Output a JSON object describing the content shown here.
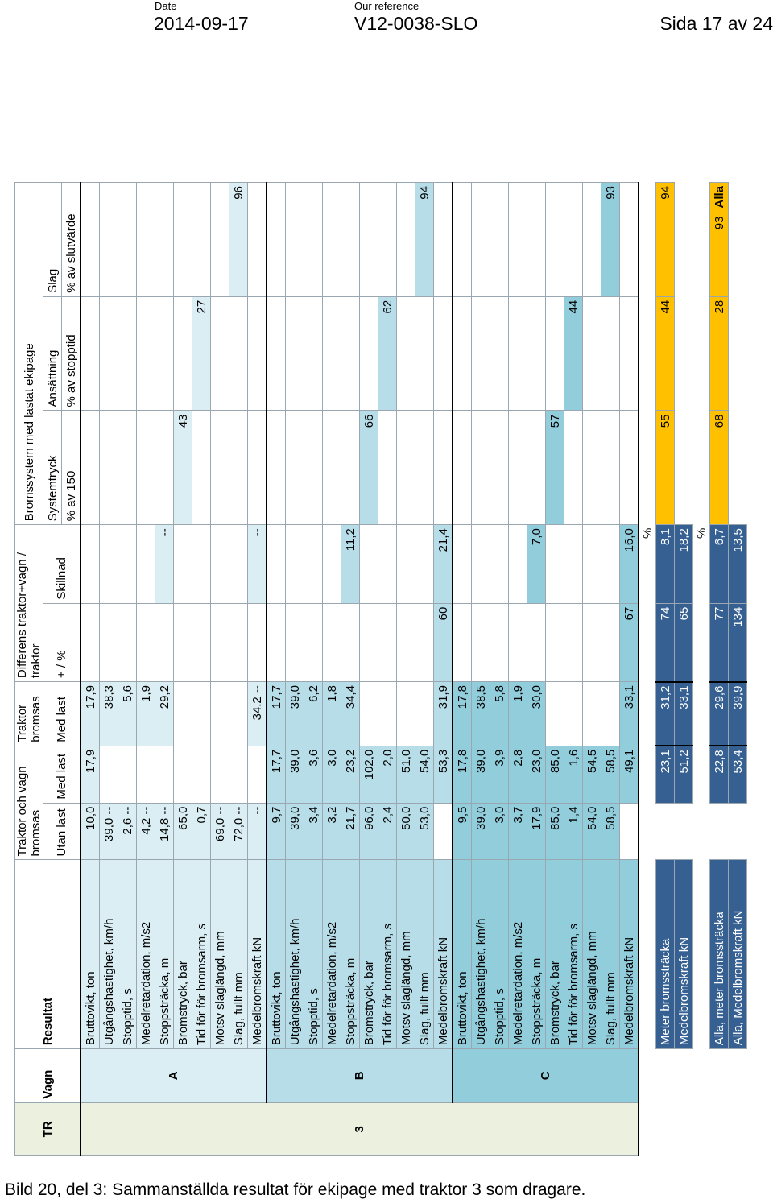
{
  "header": {
    "date_label": "Date",
    "date": "2014-09-17",
    "ref_label": "Our reference",
    "ref": "V12-0038-SLO",
    "page": "Sida 17 av 24"
  },
  "caption": "Bild 20, del 3: Sammanställda resultat för ekipage med traktor 3 som dragare.",
  "table": {
    "h_tr": "TR",
    "h_vagn": "Vagn",
    "h_resultat": "Resultat",
    "h_group1": "Traktor och vagn bromsas",
    "h_group2": "Traktor bromsas",
    "h_group3": "Differens traktor+vagn / traktor",
    "h_group4": "Bromssystem med lastat ekipage",
    "h_utan": "Utan last",
    "h_med1": "Med last",
    "h_med2": "Med last",
    "h_pct": "+ / %",
    "h_skillnad": "Skillnad",
    "h_system": "Systemtryck",
    "h_ans": "Ansättning",
    "h_slag": "Slag",
    "h_sys_sub": "% av 150",
    "h_ans_sub": "% av stopptid",
    "h_slag_sub": "% av slutvärde",
    "tr": "3",
    "groups": [
      {
        "label": "A",
        "rows": [
          {
            "name": "Bruttovikt, ton",
            "u": "10,0",
            "m": "17,9",
            "t": "17,9",
            "p": "",
            "s": "",
            "sys": "",
            "ans": "",
            "sl": ""
          },
          {
            "name": "Utgångshastighet, km/h",
            "u": "39,0 --",
            "m": "",
            "t": "38,3",
            "p": "",
            "s": "",
            "sys": "",
            "ans": "",
            "sl": ""
          },
          {
            "name": "Stopptid, s",
            "u": "2,6 --",
            "m": "",
            "t": "5,6",
            "p": "",
            "s": "",
            "sys": "",
            "ans": "",
            "sl": ""
          },
          {
            "name": "Medelretardation, m/s2",
            "u": "4,2 --",
            "m": "",
            "t": "1,9",
            "p": "",
            "s": "",
            "sys": "",
            "ans": "",
            "sl": ""
          },
          {
            "name": "Stoppsträcka, m",
            "u": "14,8 --",
            "m": "",
            "t": "29,2",
            "p": "",
            "s": "--",
            "sys": "",
            "ans": "",
            "sl": ""
          },
          {
            "name": "Bromstryck, bar",
            "u": "65,0",
            "m": "",
            "t": "",
            "p": "",
            "s": "",
            "sys": "43",
            "ans": "",
            "sl": ""
          },
          {
            "name": "Tid för för bromsarm, s",
            "u": "0,7",
            "m": "",
            "t": "",
            "p": "",
            "s": "",
            "sys": "",
            "ans": "27",
            "sl": ""
          },
          {
            "name": "Motsv slaglängd, mm",
            "u": "69,0 --",
            "m": "",
            "t": "",
            "p": "",
            "s": "",
            "sys": "",
            "ans": "",
            "sl": ""
          },
          {
            "name": "Slag, fullt mm",
            "u": "72,0 --",
            "m": "",
            "t": "",
            "p": "",
            "s": "",
            "sys": "",
            "ans": "",
            "sl": "96"
          },
          {
            "name": "Medelbromskraft kN",
            "u": "--",
            "m": "",
            "t": "34,2 --",
            "p": "",
            "s": "--",
            "sys": "",
            "ans": "",
            "sl": ""
          }
        ]
      },
      {
        "label": "B",
        "rows": [
          {
            "name": "Bruttovikt, ton",
            "u": "9,7",
            "m": "17,7",
            "t": "17,7",
            "p": "",
            "s": "",
            "sys": "",
            "ans": "",
            "sl": ""
          },
          {
            "name": "Utgångshastighet, km/h",
            "u": "39,0",
            "m": "39,0",
            "t": "39,0",
            "p": "",
            "s": "",
            "sys": "",
            "ans": "",
            "sl": ""
          },
          {
            "name": "Stopptid, s",
            "u": "3,4",
            "m": "3,6",
            "t": "6,2",
            "p": "",
            "s": "",
            "sys": "",
            "ans": "",
            "sl": ""
          },
          {
            "name": "Medelretardation, m/s2",
            "u": "3,2",
            "m": "3,0",
            "t": "1,8",
            "p": "",
            "s": "",
            "sys": "",
            "ans": "",
            "sl": ""
          },
          {
            "name": "Stoppsträcka, m",
            "u": "21,7",
            "m": "23,2",
            "t": "34,4",
            "p": "",
            "s": "11,2",
            "sys": "",
            "ans": "",
            "sl": ""
          },
          {
            "name": "Bromstryck, bar",
            "u": "96,0",
            "m": "102,0",
            "t": "",
            "p": "",
            "s": "",
            "sys": "66",
            "ans": "",
            "sl": ""
          },
          {
            "name": "Tid för för bromsarm, s",
            "u": "2,4",
            "m": "2,0",
            "t": "",
            "p": "",
            "s": "",
            "sys": "",
            "ans": "62",
            "sl": ""
          },
          {
            "name": "Motsv slaglängd, mm",
            "u": "50,0",
            "m": "51,0",
            "t": "",
            "p": "",
            "s": "",
            "sys": "",
            "ans": "",
            "sl": ""
          },
          {
            "name": "Slag, fullt mm",
            "u": "53,0",
            "m": "54,0",
            "t": "",
            "p": "",
            "s": "",
            "sys": "",
            "ans": "",
            "sl": "94"
          },
          {
            "name": "Medelbromskraft kN",
            "u": "",
            "m": "53,3",
            "t": "31,9",
            "p": "60",
            "s": "21,4",
            "sys": "",
            "ans": "",
            "sl": ""
          }
        ]
      },
      {
        "label": "C",
        "rows": [
          {
            "name": "Bruttovikt, ton",
            "u": "9,5",
            "m": "17,8",
            "t": "17,8",
            "p": "",
            "s": "",
            "sys": "",
            "ans": "",
            "sl": ""
          },
          {
            "name": "Utgångshastighet, km/h",
            "u": "39,0",
            "m": "39,0",
            "t": "38,5",
            "p": "",
            "s": "",
            "sys": "",
            "ans": "",
            "sl": ""
          },
          {
            "name": "Stopptid, s",
            "u": "3,0",
            "m": "3,9",
            "t": "5,8",
            "p": "",
            "s": "",
            "sys": "",
            "ans": "",
            "sl": ""
          },
          {
            "name": "Medelretardation, m/s2",
            "u": "3,7",
            "m": "2,8",
            "t": "1,9",
            "p": "",
            "s": "",
            "sys": "",
            "ans": "",
            "sl": ""
          },
          {
            "name": "Stoppsträcka, m",
            "u": "17,9",
            "m": "23,0",
            "t": "30,0",
            "p": "",
            "s": "7,0",
            "sys": "",
            "ans": "",
            "sl": ""
          },
          {
            "name": "Bromstryck, bar",
            "u": "85,0",
            "m": "85,0",
            "t": "",
            "p": "",
            "s": "",
            "sys": "57",
            "ans": "",
            "sl": ""
          },
          {
            "name": "Tid för för bromsarm, s",
            "u": "1,4",
            "m": "1,6",
            "t": "",
            "p": "",
            "s": "",
            "sys": "",
            "ans": "44",
            "sl": ""
          },
          {
            "name": "Motsv slaglängd, mm",
            "u": "54,0",
            "m": "54,5",
            "t": "",
            "p": "",
            "s": "",
            "sys": "",
            "ans": "",
            "sl": ""
          },
          {
            "name": "Slag, fullt mm",
            "u": "58,5",
            "m": "58,5",
            "t": "",
            "p": "",
            "s": "",
            "sys": "",
            "ans": "",
            "sl": "93"
          },
          {
            "name": "Medelbromskraft kN",
            "u": "",
            "m": "49,1",
            "t": "33,1",
            "p": "67",
            "s": "16,0",
            "sys": "",
            "ans": "",
            "sl": ""
          }
        ]
      }
    ],
    "pct_label1": "%",
    "pct_label2": "%",
    "summary1": [
      {
        "name": "Meter bromssträcka",
        "m": "23,1",
        "t": "31,2",
        "p": "74",
        "s": "8,1",
        "sys": "55",
        "ans": "44",
        "sl": "94"
      },
      {
        "name": "Medelbromskraft kN",
        "m": "51,2",
        "t": "33,1",
        "p": "65",
        "s": "18,2",
        "sys": "",
        "ans": "",
        "sl": ""
      }
    ],
    "summary2": [
      {
        "name": "Alla, meter bromssträcka",
        "m": "22,8",
        "t": "29,6",
        "p": "77",
        "s": "6,7",
        "sys": "68",
        "ans": "28",
        "sl": "93",
        "extra": "Alla"
      },
      {
        "name": "Alla, Medelbromskraft kN",
        "m": "53,4",
        "t": "39,9",
        "p": "134",
        "s": "13,5",
        "sys": "",
        "ans": "",
        "sl": ""
      }
    ]
  }
}
